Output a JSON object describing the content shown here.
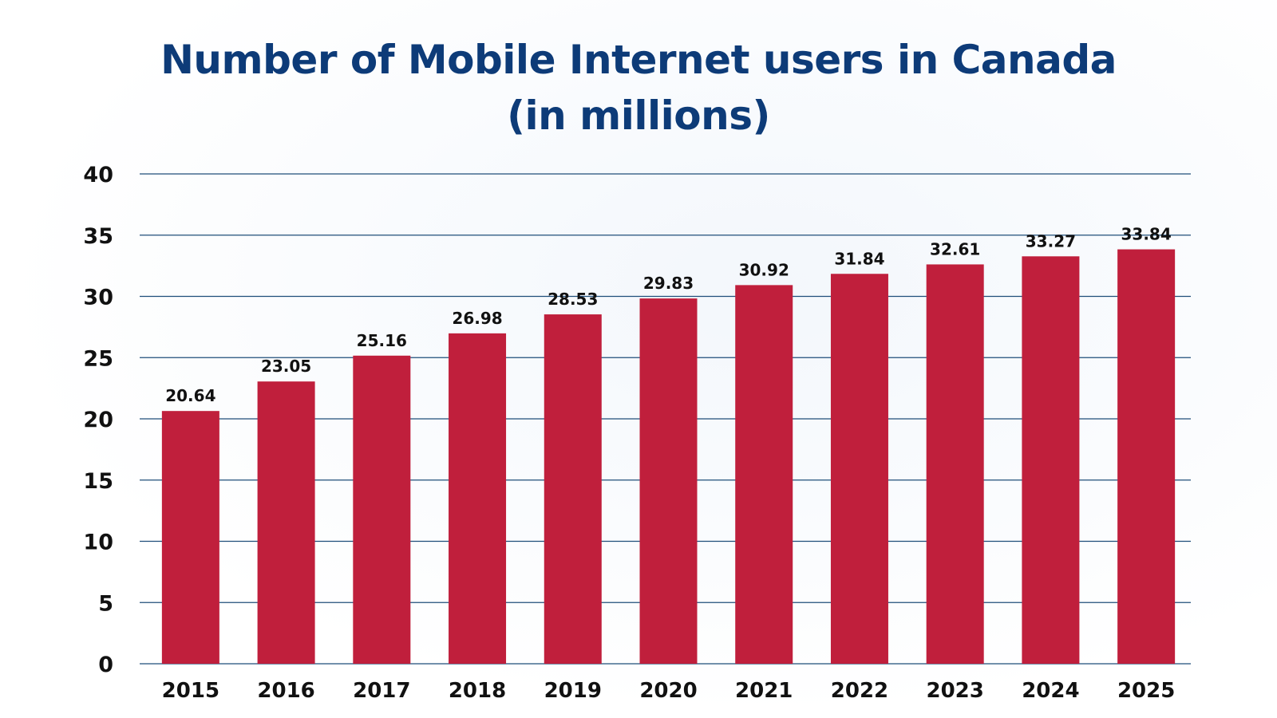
{
  "chart_data": {
    "type": "bar",
    "title_line1": "Number of Mobile Internet users in Canada",
    "title_line2": "(in millions)",
    "categories": [
      "2015",
      "2016",
      "2017",
      "2018",
      "2019",
      "2020",
      "2021",
      "2022",
      "2023",
      "2024",
      "2025"
    ],
    "values": [
      20.64,
      23.05,
      25.16,
      26.98,
      28.53,
      29.83,
      30.92,
      31.84,
      32.61,
      33.27,
      33.84
    ],
    "value_labels": [
      "20.64",
      "23.05",
      "25.16",
      "26.98",
      "28.53",
      "29.83",
      "30.92",
      "31.84",
      "32.61",
      "33.27",
      "33.84"
    ],
    "ylim": [
      0,
      40
    ],
    "yticks": [
      0,
      5,
      10,
      15,
      20,
      25,
      30,
      35,
      40
    ],
    "grid": true,
    "legend": "none",
    "xlabel": "",
    "ylabel": "",
    "bar_color": "#c01f3c",
    "grid_color": "#1f4e7a",
    "title_color": "#0d3b78"
  }
}
